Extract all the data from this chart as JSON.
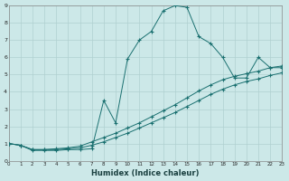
{
  "xlabel": "Humidex (Indice chaleur)",
  "xlim": [
    0,
    23
  ],
  "ylim": [
    0,
    9
  ],
  "xtick_vals": [
    0,
    1,
    2,
    3,
    4,
    5,
    6,
    7,
    8,
    9,
    10,
    11,
    12,
    13,
    14,
    15,
    16,
    17,
    18,
    19,
    20,
    21,
    22,
    23
  ],
  "ytick_vals": [
    0,
    1,
    2,
    3,
    4,
    5,
    6,
    7,
    8,
    9
  ],
  "bg_color": "#cce8e8",
  "grid_color": "#b0d0d0",
  "line_color": "#1a7070",
  "line1_x": [
    0,
    1,
    2,
    3,
    4,
    5,
    6,
    7,
    8,
    9,
    10,
    11,
    12,
    13,
    14,
    15,
    16,
    17,
    18,
    19,
    20,
    21,
    22,
    23
  ],
  "line1_y": [
    1.0,
    0.9,
    0.6,
    0.6,
    0.6,
    0.65,
    0.65,
    0.7,
    3.5,
    2.2,
    5.9,
    7.0,
    7.5,
    8.7,
    9.0,
    8.9,
    7.2,
    6.8,
    6.0,
    4.8,
    4.8,
    6.0,
    5.4,
    5.4
  ],
  "line2_x": [
    0,
    1,
    2,
    3,
    4,
    5,
    6,
    7,
    8,
    9,
    10,
    11,
    12,
    13,
    14,
    15,
    16,
    17,
    18,
    19,
    20,
    21,
    22,
    23
  ],
  "line2_y": [
    1.0,
    0.9,
    0.65,
    0.65,
    0.7,
    0.75,
    0.85,
    1.1,
    1.35,
    1.6,
    1.9,
    2.2,
    2.55,
    2.9,
    3.25,
    3.65,
    4.05,
    4.4,
    4.7,
    4.9,
    5.05,
    5.2,
    5.4,
    5.5
  ],
  "line3_x": [
    0,
    1,
    2,
    3,
    4,
    5,
    6,
    7,
    8,
    9,
    10,
    11,
    12,
    13,
    14,
    15,
    16,
    17,
    18,
    19,
    20,
    21,
    22,
    23
  ],
  "line3_y": [
    1.0,
    0.9,
    0.65,
    0.65,
    0.65,
    0.7,
    0.75,
    0.9,
    1.1,
    1.35,
    1.6,
    1.9,
    2.2,
    2.5,
    2.8,
    3.15,
    3.5,
    3.85,
    4.15,
    4.4,
    4.6,
    4.75,
    4.95,
    5.1
  ]
}
